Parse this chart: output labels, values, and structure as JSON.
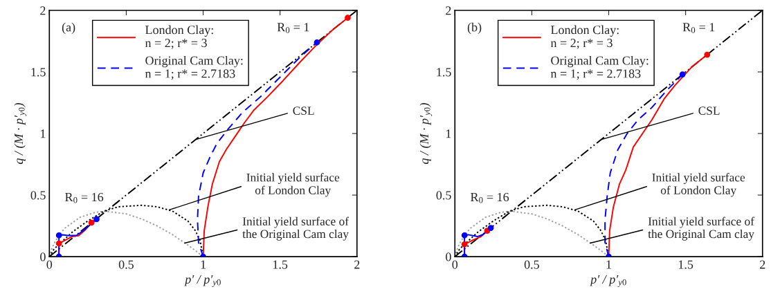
{
  "chart_data": [
    {
      "type": "line",
      "xlabel": "p′ / p′$_{y0}$",
      "ylabel": "q / (M · p′$_{y0}$)",
      "xlim": [
        0,
        2
      ],
      "ylim": [
        0,
        2
      ],
      "xticks": [
        0,
        0.5,
        1,
        1.5,
        2
      ],
      "yticks": [
        0,
        0.5,
        1,
        1.5,
        2
      ],
      "grid": false,
      "legend": "top left",
      "annotations": [
        "(a)",
        "R$_{0}$ = 1",
        "R$_{0}$ = 16",
        {
          "text": "CSL",
          "x": 0.95,
          "y": 0.95
        },
        {
          "text": "Initial yield surface\nof London Clay",
          "x": 0.78,
          "y": 0.38
        },
        {
          "text": "Initial yield surface of\nthe Original Cam clay",
          "x": 0.88,
          "y": 0.11
        }
      ],
      "series": [
        {
          "color": "#000000",
          "line_style": "dashdot",
          "x": [
            0,
            2
          ],
          "values": [
            0,
            2
          ]
        },
        {
          "color": "#a0a0a0",
          "line_style": "dotted",
          "x": [
            0,
            0.01,
            0.03,
            0.0625,
            0.1,
            0.2,
            0.3,
            0.368,
            0.5,
            0.6,
            0.7,
            0.8,
            0.9,
            0.95,
            1.0
          ],
          "values": [
            0,
            0.046,
            0.105,
            0.173,
            0.23,
            0.32,
            0.36,
            0.368,
            0.347,
            0.306,
            0.25,
            0.179,
            0.095,
            0.049,
            0
          ]
        },
        {
          "color": "#000000",
          "line_style": "dotted",
          "x": [
            0,
            0.03,
            0.0625,
            0.15,
            0.25,
            0.356,
            0.45,
            0.6,
            0.7,
            0.8,
            0.9,
            0.95,
            0.98,
            1.0
          ],
          "values": [
            0,
            0.06,
            0.1,
            0.2,
            0.29,
            0.37,
            0.405,
            0.417,
            0.405,
            0.37,
            0.29,
            0.21,
            0.13,
            0
          ]
        },
        {
          "name": "London Clay:\nn = 2; r* = 3",
          "color": "#ff0000",
          "line_style": "solid",
          "x": [
            1.0,
            1.007,
            1.03,
            1.06,
            1.105,
            1.15,
            1.21,
            1.27,
            1.33,
            1.42,
            1.52,
            1.63,
            1.73,
            1.84,
            1.94
          ],
          "values": [
            0,
            0.21,
            0.4,
            0.59,
            0.77,
            0.87,
            0.98,
            1.09,
            1.19,
            1.3,
            1.43,
            1.58,
            1.71,
            1.84,
            1.94
          ]
        },
        {
          "name": "Original Cam Clay:\nn = 1; r* = 2.7183",
          "color": "#0000ff",
          "line_style": "dashed",
          "x": [
            1.0,
            0.97,
            0.963,
            0.97,
            1.0,
            1.045,
            1.09,
            1.165,
            1.255,
            1.374,
            1.51,
            1.63,
            1.74
          ],
          "values": [
            0,
            0.116,
            0.3,
            0.49,
            0.68,
            0.81,
            0.92,
            1.04,
            1.17,
            1.3,
            1.47,
            1.62,
            1.74
          ]
        },
        {
          "color": "#ff0000",
          "line_style": "solid",
          "x": [
            0.0625,
            0.0625,
            0.147,
            0.19,
            0.236,
            0.274
          ],
          "values": [
            0,
            0.107,
            0.163,
            0.17,
            0.22,
            0.276
          ]
        },
        {
          "color": "#0000ff",
          "line_style": "solid",
          "x": [
            0.0625,
            0.0625,
            0.087,
            0.13,
            0.177,
            0.22,
            0.307
          ],
          "values": [
            0,
            0.173,
            0.177,
            0.17,
            0.173,
            0.21,
            0.304
          ]
        },
        {
          "type": "scatter",
          "color": "#ff0000",
          "marker": "circle",
          "x": [
            0.0625,
            0.274,
            1.94
          ],
          "values": [
            0.107,
            0.276,
            1.94
          ]
        },
        {
          "type": "scatter",
          "color": "#0000ff",
          "marker": "circle",
          "x": [
            0.0625,
            0.0625,
            0.307,
            1.0,
            1.74
          ],
          "values": [
            0,
            0.173,
            0.304,
            0,
            1.74
          ]
        }
      ]
    },
    {
      "type": "line",
      "xlabel": "p′ / p′$_{y0}$",
      "ylabel": "q / (M · p′$_{y0}$)",
      "xlim": [
        0,
        2
      ],
      "ylim": [
        0,
        2
      ],
      "xticks": [
        0,
        0.5,
        1,
        1.5,
        2
      ],
      "yticks": [
        0,
        0.5,
        1,
        1.5,
        2
      ],
      "grid": false,
      "legend": "top left",
      "annotations": [
        "(b)",
        "R$_{0}$ = 1",
        "R$_{0}$ = 16",
        {
          "text": "CSL",
          "x": 0.95,
          "y": 0.95
        },
        {
          "text": "Initial yield surface\nof London Clay",
          "x": 0.78,
          "y": 0.38
        },
        {
          "text": "Initial yield surface of\nthe Original Cam clay",
          "x": 0.88,
          "y": 0.11
        }
      ],
      "series": [
        {
          "color": "#000000",
          "line_style": "dashdot",
          "x": [
            0,
            2
          ],
          "values": [
            0,
            2
          ]
        },
        {
          "color": "#a0a0a0",
          "line_style": "dotted",
          "x": [
            0,
            0.01,
            0.03,
            0.0625,
            0.1,
            0.2,
            0.3,
            0.368,
            0.5,
            0.6,
            0.7,
            0.8,
            0.9,
            0.95,
            1.0
          ],
          "values": [
            0,
            0.046,
            0.105,
            0.173,
            0.23,
            0.32,
            0.36,
            0.368,
            0.347,
            0.306,
            0.25,
            0.179,
            0.095,
            0.049,
            0
          ]
        },
        {
          "color": "#000000",
          "line_style": "dotted",
          "x": [
            0,
            0.03,
            0.0625,
            0.15,
            0.25,
            0.356,
            0.45,
            0.6,
            0.7,
            0.8,
            0.9,
            0.95,
            0.98,
            1.0
          ],
          "values": [
            0,
            0.06,
            0.1,
            0.2,
            0.29,
            0.37,
            0.405,
            0.417,
            0.405,
            0.37,
            0.29,
            0.21,
            0.13,
            0
          ]
        },
        {
          "name": "London Clay:\nn = 2; r* = 3",
          "color": "#ff0000",
          "line_style": "solid",
          "x": [
            1.0,
            1.006,
            1.03,
            1.07,
            1.11,
            1.16,
            1.22,
            1.28,
            1.36,
            1.43,
            1.54,
            1.64
          ],
          "values": [
            0,
            0.21,
            0.4,
            0.59,
            0.7,
            0.89,
            1.0,
            1.11,
            1.28,
            1.39,
            1.54,
            1.64
          ]
        },
        {
          "name": "Original Cam Clay:\nn = 1; r* = 2.7183",
          "color": "#0000ff",
          "line_style": "dashed",
          "x": [
            1.0,
            0.976,
            0.976,
            0.99,
            1.01,
            1.06,
            1.12,
            1.19,
            1.28,
            1.37,
            1.48
          ],
          "values": [
            0,
            0.116,
            0.3,
            0.49,
            0.68,
            0.87,
            1.0,
            1.11,
            1.21,
            1.34,
            1.48
          ]
        },
        {
          "color": "#ff0000",
          "line_style": "solid",
          "x": [
            0.0625,
            0.0625,
            0.117,
            0.17,
            0.21
          ],
          "values": [
            0,
            0.1,
            0.135,
            0.163,
            0.21
          ]
        },
        {
          "color": "#0000ff",
          "line_style": "solid",
          "x": [
            0.0625,
            0.0625,
            0.087,
            0.147,
            0.184,
            0.233
          ],
          "values": [
            0,
            0.173,
            0.178,
            0.163,
            0.18,
            0.233
          ]
        },
        {
          "type": "scatter",
          "color": "#ff0000",
          "marker": "circle",
          "x": [
            0.0625,
            0.21,
            1.64
          ],
          "values": [
            0.1,
            0.21,
            1.64
          ]
        },
        {
          "type": "scatter",
          "color": "#0000ff",
          "marker": "circle",
          "x": [
            0.0625,
            0.0625,
            0.233,
            1.0,
            1.48
          ],
          "values": [
            0,
            0.173,
            0.233,
            0,
            1.48
          ]
        }
      ]
    }
  ]
}
